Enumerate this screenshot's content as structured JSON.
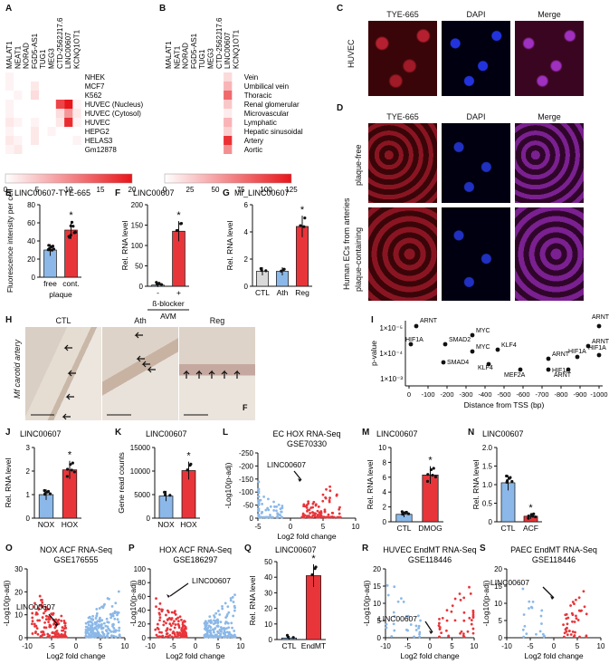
{
  "panels": {
    "A": "A",
    "B": "B",
    "C": "C",
    "D": "D",
    "E": "E",
    "F": "F",
    "G": "G",
    "H": "H",
    "I": "I",
    "J": "J",
    "K": "K",
    "L": "L",
    "M": "M",
    "N": "N",
    "O": "O",
    "P": "P",
    "Q": "Q",
    "R": "R",
    "S": "S"
  },
  "heatmapA": {
    "cols": [
      "MALAT1",
      "NEAT1",
      "NORAD",
      "FGD5-AS1",
      "TUG1",
      "MEG3",
      "CTD-2562J17.6",
      "LINC00607",
      "KCNQ1OT1"
    ],
    "rows": [
      "NHEK",
      "MCF7",
      "K562",
      "HUVEC (Nucleus)",
      "HUVEC (Cytosol)",
      "HUVEC",
      "HEPG2",
      "HELAS3",
      "Gm12878"
    ],
    "values": [
      [
        1,
        0,
        0,
        0,
        0,
        0,
        0,
        0,
        0
      ],
      [
        1,
        0,
        0,
        2,
        0,
        0,
        0,
        0,
        0
      ],
      [
        0,
        1,
        0,
        3,
        0,
        0,
        0,
        0,
        0
      ],
      [
        1,
        0,
        0,
        0,
        0,
        0,
        16,
        20,
        1
      ],
      [
        1,
        0,
        0,
        0,
        0,
        0,
        3,
        9,
        2
      ],
      [
        2,
        1,
        0,
        1,
        0,
        0,
        2,
        18,
        1
      ],
      [
        1,
        0,
        0,
        2,
        0,
        1,
        0,
        0,
        0
      ],
      [
        2,
        1,
        0,
        2,
        0,
        0,
        0,
        0,
        1
      ],
      [
        1,
        2,
        0,
        0,
        0,
        0,
        0,
        0,
        0
      ]
    ],
    "scale": [
      "0",
      "5",
      "10",
      "15",
      "20"
    ]
  },
  "heatmapB": {
    "cols": [
      "MALAT1",
      "NEAT1",
      "NORAD",
      "FGD5-AS1",
      "TUG1",
      "MEG3",
      "CTD-2562J17.6",
      "LINC00607",
      "KCNQ1OT1"
    ],
    "rows": [
      "Vein",
      "Umbilical vein",
      "Thoracic",
      "Renal glomerular",
      "Microvascular",
      "Lymphatic",
      "Hepatic sinusoidal",
      "Artery",
      "Aortic"
    ],
    "col7": [
      20,
      40,
      80,
      30,
      10,
      40,
      25,
      110,
      60
    ],
    "scale": [
      "0",
      "25",
      "50",
      "75",
      "100",
      "125"
    ]
  },
  "micro": {
    "headers": [
      "TYE-665",
      "DAPI",
      "Merge"
    ],
    "huvec": "HUVEC",
    "plaque_free": "plaque-free",
    "plaque_containing": "plaque-containing",
    "side": "Human ECs from arteries"
  },
  "chart_data": [
    {
      "panel": "E",
      "type": "bar",
      "title": "LINC00607-TYE-665",
      "categories": [
        "free",
        "cont."
      ],
      "values": [
        30,
        52
      ],
      "ylabel": "Fluorescence intensity per cell",
      "xlabel": "plaque",
      "ylim": [
        0,
        80
      ],
      "yticks": [
        "0",
        "20",
        "40",
        "60",
        "80"
      ],
      "star": "*"
    },
    {
      "panel": "F",
      "type": "bar",
      "title": "LINC00607",
      "categories": [
        "-",
        "+"
      ],
      "values": [
        3,
        135
      ],
      "ylabel": "Rel. RNA level",
      "xlabel": "ß-blocker",
      "xlabel2": "AVM",
      "ylim": [
        0,
        200
      ],
      "yticks": [
        "0",
        "50",
        "100",
        "150",
        "200"
      ],
      "star": "*"
    },
    {
      "panel": "G",
      "type": "bar",
      "title": "Mf_LINC00607",
      "categories": [
        "CTL",
        "Ath",
        "Reg"
      ],
      "values": [
        1.1,
        1.1,
        4.4
      ],
      "ylabel": "Rel. RNA level",
      "ylim": [
        0,
        6
      ],
      "yticks": [
        "0",
        "2",
        "4",
        "6"
      ],
      "star": "*"
    },
    {
      "panel": "I",
      "type": "scatter",
      "xlabel": "Distance from TSS (bp)",
      "ylabel": "p-value",
      "xticks": [
        "0",
        "-100",
        "-200",
        "-300",
        "-400",
        "-500",
        "-600",
        "-700",
        "-800",
        "-900",
        "-1000"
      ],
      "yticks": [
        "1×10⁻⁵",
        "1×10⁻⁴",
        "1×10⁻³"
      ],
      "points": [
        "ARNT",
        "HIF1A",
        "SMAD2",
        "SMAD4",
        "MYC",
        "MYC",
        "KLF4",
        "KLF4",
        "MEF2A",
        "ARNT",
        "HIF1A",
        "HIF1A",
        "ARNT",
        "ARNT",
        "ARNT",
        "HIF1A"
      ]
    },
    {
      "panel": "J",
      "type": "bar",
      "title": "LINC00607",
      "categories": [
        "NOX",
        "HOX"
      ],
      "values": [
        1,
        2.05
      ],
      "ylabel": "Rel. RNA level",
      "ylim": [
        0,
        3
      ],
      "yticks": [
        "0",
        "1",
        "2",
        "3"
      ],
      "star": "*"
    },
    {
      "panel": "K",
      "type": "bar",
      "title": "LINC00607",
      "categories": [
        "NOX",
        "HOX"
      ],
      "values": [
        4700,
        10100
      ],
      "ylabel": "Gene read counts",
      "ylim": [
        0,
        15000
      ],
      "yticks": [
        "0",
        "5000",
        "10000",
        "15000"
      ],
      "star": "*"
    },
    {
      "panel": "L",
      "type": "scatter",
      "title": "EC HOX RNA-Seq",
      "subtitle": "GSE70330",
      "xlabel": "Log2 fold change",
      "ylabel": "-Log10(p-adj)",
      "xticks": [
        "-5",
        "0",
        "5",
        "10"
      ],
      "yticks": [
        "0",
        "-50",
        "-100",
        "-150",
        "-200",
        "-250"
      ],
      "annotation": "LINC00607"
    },
    {
      "panel": "M",
      "type": "bar",
      "title": "LINC00607",
      "categories": [
        "CTL",
        "DMOG"
      ],
      "values": [
        1,
        6.3
      ],
      "ylabel": "Rel. RNA level",
      "ylim": [
        0,
        10
      ],
      "yticks": [
        "0",
        "2",
        "4",
        "6",
        "8",
        "10"
      ],
      "star": "*"
    },
    {
      "panel": "N",
      "type": "bar",
      "title": "LINC00607",
      "categories": [
        "CTL",
        "ACF"
      ],
      "values": [
        1.05,
        0.15
      ],
      "ylabel": "Rel. RNA level",
      "ylim": [
        0,
        2.0
      ],
      "yticks": [
        "0",
        "0.5",
        "1.0",
        "1.5",
        "2.0"
      ],
      "star": "*"
    },
    {
      "panel": "O",
      "type": "scatter",
      "title": "NOX ACF RNA-Seq",
      "subtitle": "GSE176555",
      "xlabel": "Log2 fold change",
      "ylabel": "-Log10(p-adj)",
      "xticks": [
        "-10",
        "-5",
        "0",
        "5",
        "10"
      ],
      "yticks": [
        "0",
        "10",
        "20",
        "30"
      ],
      "annotation": "LINC00607"
    },
    {
      "panel": "P",
      "type": "scatter",
      "title": "HOX ACF RNA-Seq",
      "subtitle": "GSE186297",
      "xlabel": "Log2 fold change",
      "ylabel": "-Log10(p-adj)",
      "xticks": [
        "-10",
        "-5",
        "0",
        "5",
        "10"
      ],
      "yticks": [
        "0",
        "20",
        "40",
        "60",
        "80",
        "100"
      ],
      "annotation": "LINC00607"
    },
    {
      "panel": "Q",
      "type": "bar",
      "title": "LINC00607",
      "categories": [
        "CTL",
        "EndMT"
      ],
      "values": [
        1,
        41
      ],
      "ylabel": "Rel. RNA level",
      "ylim": [
        0,
        50
      ],
      "yticks": [
        "0",
        "10",
        "20",
        "30",
        "40",
        "50"
      ],
      "star": "*"
    },
    {
      "panel": "R",
      "type": "scatter",
      "title": "HUVEC EndMT RNA-Seq",
      "subtitle": "GSE118446",
      "xlabel": "Log2 fold change",
      "ylabel": "-Log10(p-adj)",
      "xticks": [
        "-10",
        "-5",
        "0",
        "5",
        "10"
      ],
      "yticks": [
        "0",
        "5",
        "10",
        "15",
        "20"
      ],
      "annotation": "LINC00607"
    },
    {
      "panel": "S",
      "type": "scatter",
      "title": "PAEC EndMT RNA-Seq",
      "subtitle": "GSE118446",
      "xlabel": "Log2 fold change",
      "ylabel": "-Log10(p-adj)",
      "xticks": [
        "-10",
        "-5",
        "0",
        "5",
        "10"
      ],
      "yticks": [
        "0",
        "5",
        "10",
        "15",
        "20"
      ],
      "annotation": "LINC00607"
    }
  ],
  "histo": {
    "left_label": "Mf carotid artery",
    "labels": [
      "CTL",
      "Ath",
      "Reg"
    ],
    "f_label": "F"
  },
  "colors": {
    "red": "#e8353a",
    "blue": "#8bb8e8",
    "grey": "#d9d9d9",
    "hm_low": "#ffffff",
    "hm_high": "#e8151a"
  }
}
